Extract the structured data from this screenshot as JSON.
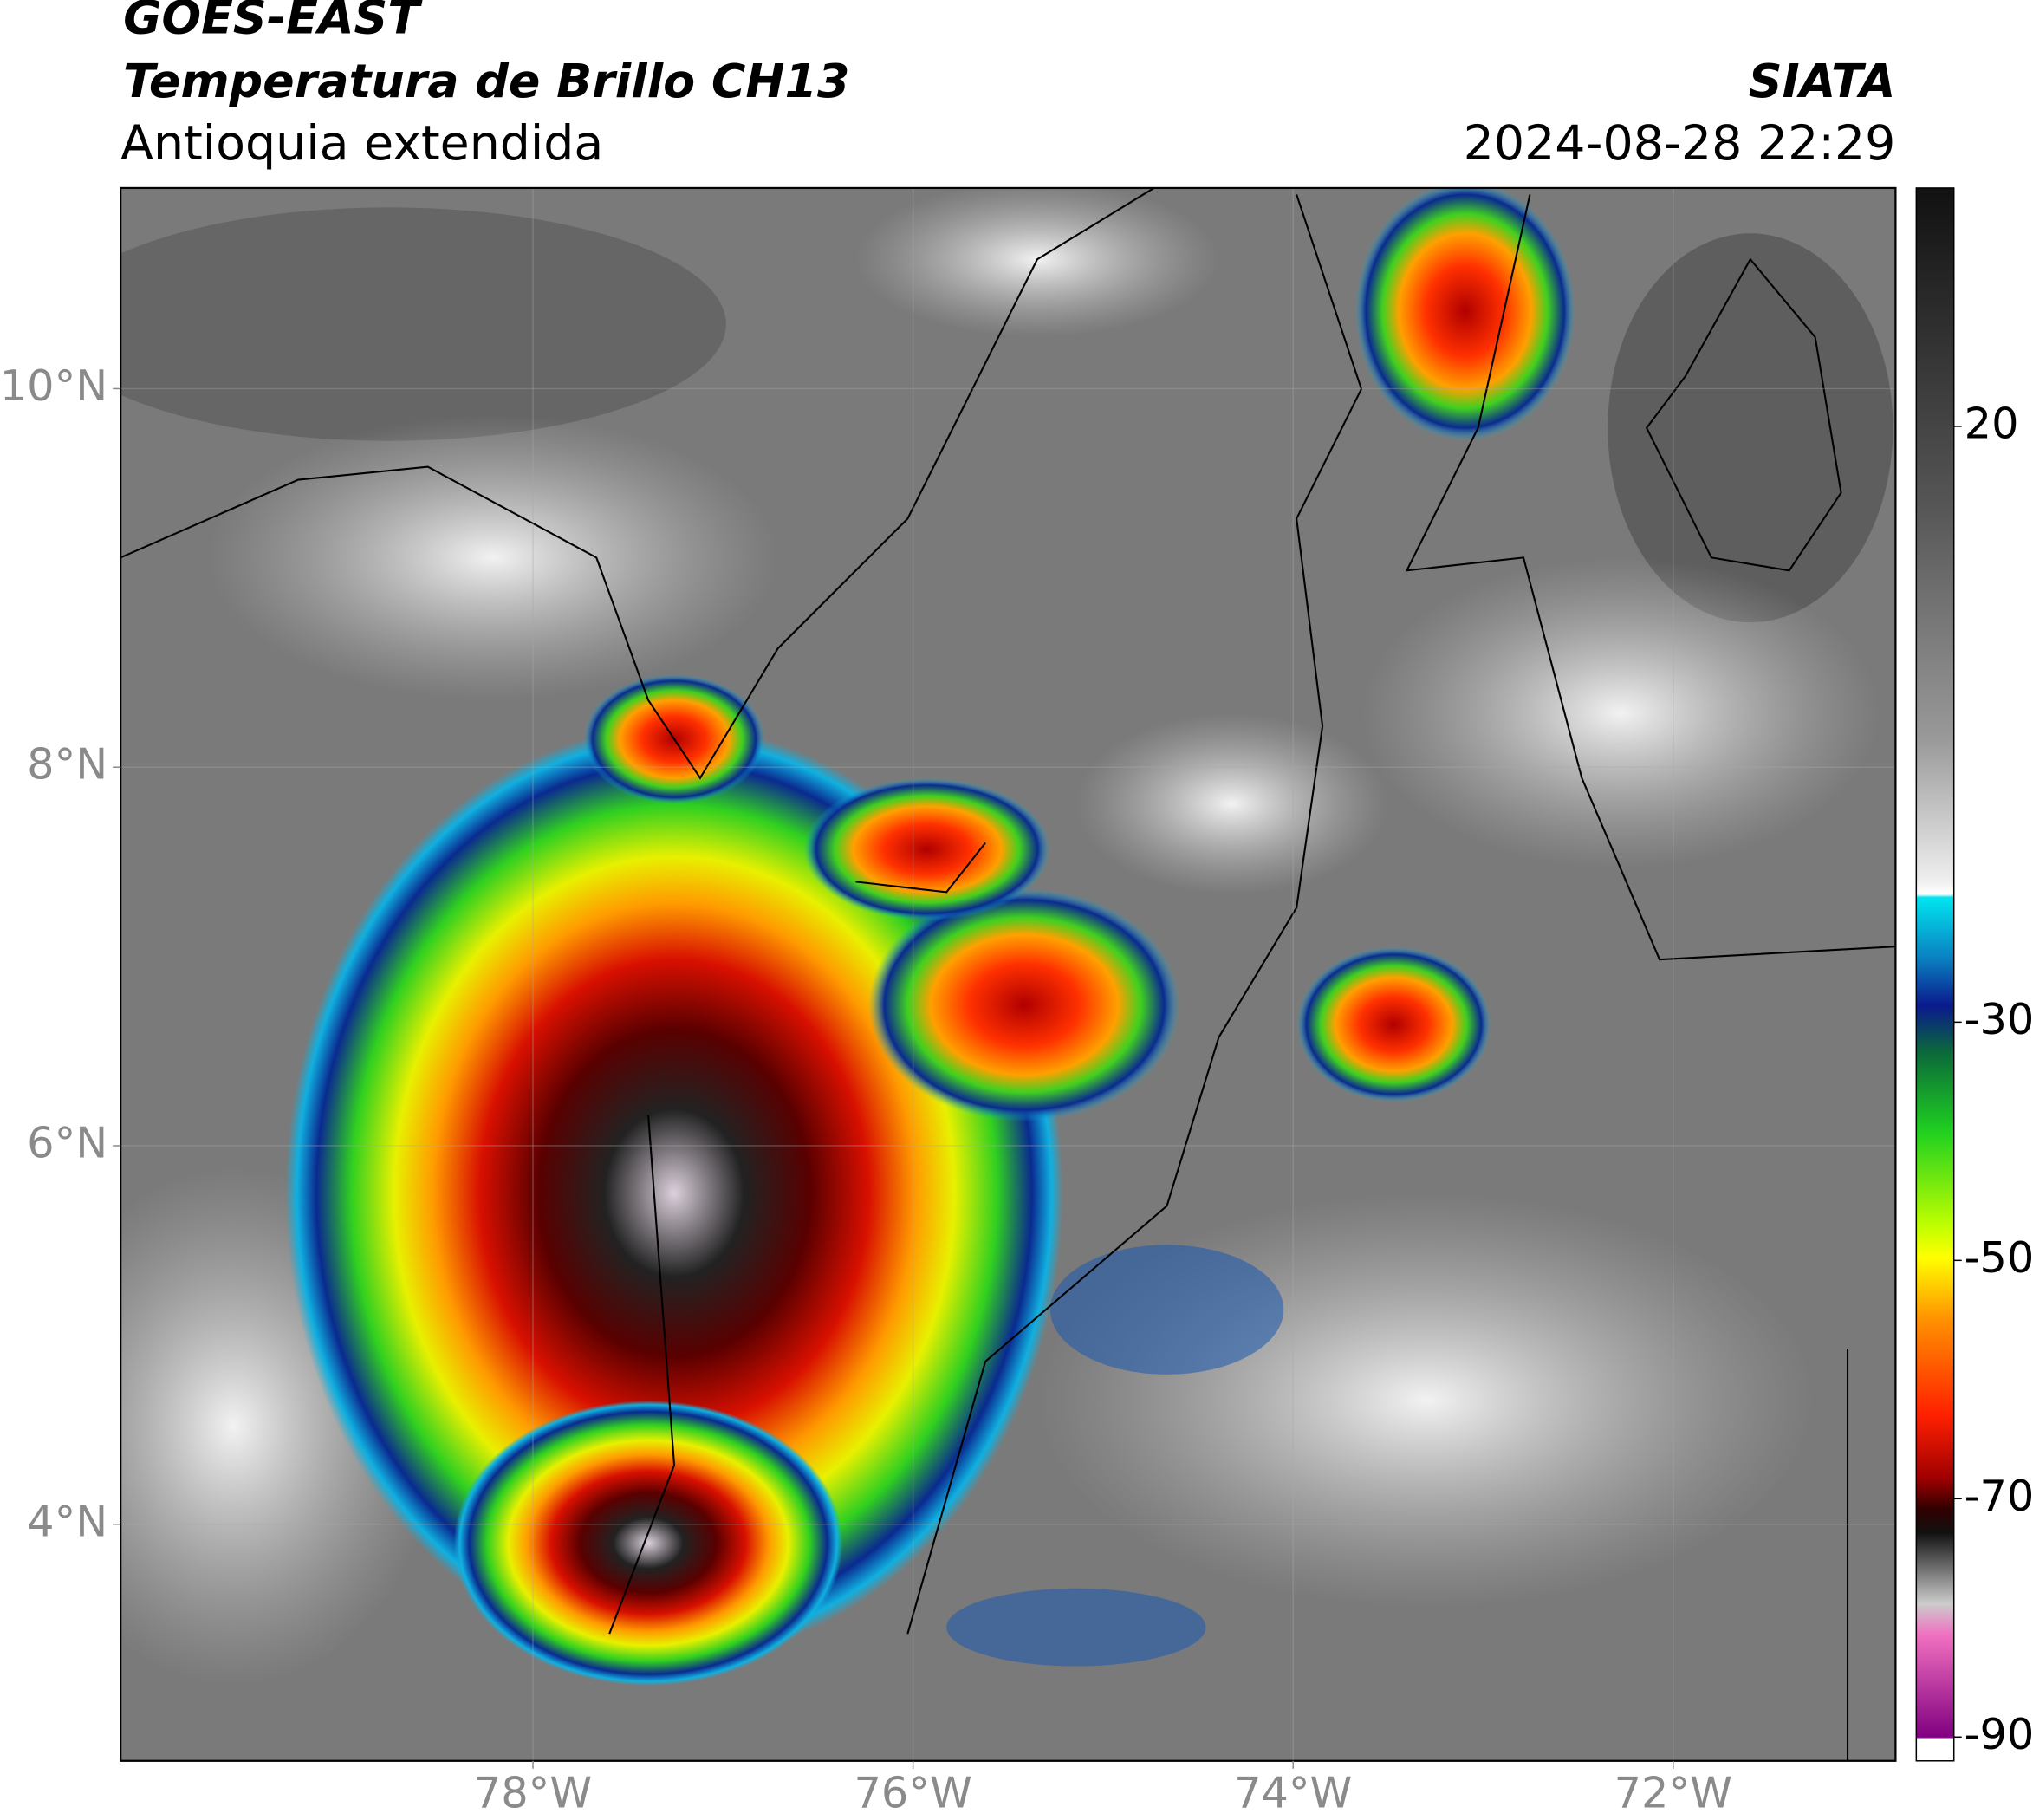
{
  "header": {
    "satellite": "GOES-EAST",
    "product": "Temperatura de Brillo CH13",
    "region": "Antioquia extendida",
    "source": "SIATA",
    "datetime": "2024-08-28 22:29"
  },
  "map": {
    "xlim": [
      -80.17,
      -70.83
    ],
    "ylim": [
      2.75,
      11.06
    ],
    "xticks": [
      {
        "value": -78,
        "label": "78°W"
      },
      {
        "value": -76,
        "label": "76°W"
      },
      {
        "value": -74,
        "label": "74°W"
      },
      {
        "value": -72,
        "label": "72°W"
      }
    ],
    "yticks": [
      {
        "value": 10,
        "label": "10°N"
      },
      {
        "value": 8,
        "label": "8°N"
      },
      {
        "value": 6,
        "label": "6°N"
      },
      {
        "value": 4,
        "label": "4°N"
      }
    ],
    "grid": true
  },
  "colorbar": {
    "clim": [
      -92,
      40
    ],
    "ticks": [
      20,
      -30,
      -50,
      -70,
      -90
    ]
  }
}
